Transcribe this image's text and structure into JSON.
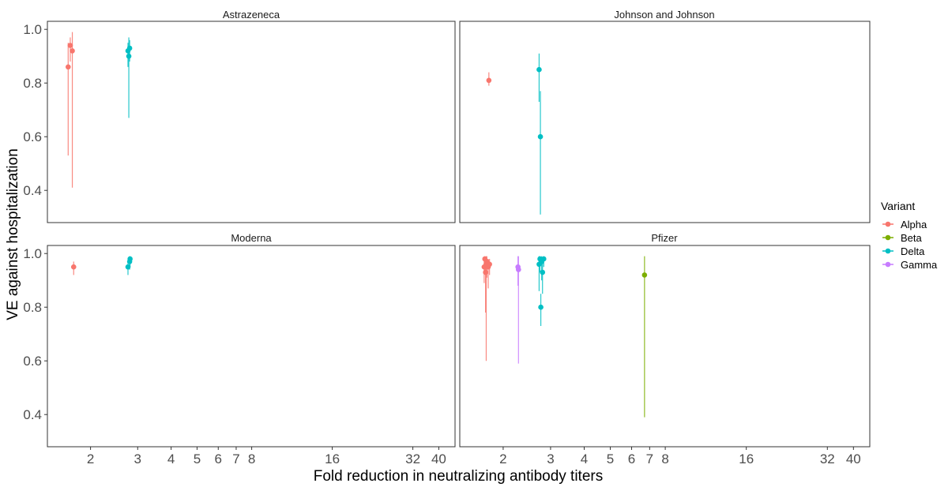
{
  "chart_data": {
    "type": "scatter",
    "xlabel": "Fold reduction in neutralizing antibody titers",
    "ylabel": "VE against hospitalization",
    "x_scale": "log",
    "xlim": [
      1.38,
      46
    ],
    "ylim": [
      0.28,
      1.03
    ],
    "x_ticks": [
      2,
      3,
      4,
      5,
      6,
      7,
      8,
      16,
      32,
      40
    ],
    "y_ticks": [
      0.4,
      0.6,
      0.8,
      1.0
    ],
    "y_tick_labels": [
      "0.4",
      "0.6",
      "0.8",
      "1.0"
    ],
    "legend": {
      "title": "Variant",
      "placement": "right",
      "entries": [
        {
          "name": "Alpha",
          "color": "#F8766D"
        },
        {
          "name": "Beta",
          "color": "#7CAE00"
        },
        {
          "name": "Delta",
          "color": "#00BFC4"
        },
        {
          "name": "Gamma",
          "color": "#C77CFF"
        }
      ]
    },
    "panels": [
      {
        "title": "Astrazeneca",
        "points": [
          {
            "variant": "Alpha",
            "x": 1.65,
            "y": 0.86,
            "lo": 0.53,
            "hi": 0.95
          },
          {
            "variant": "Alpha",
            "x": 1.68,
            "y": 0.94,
            "lo": 0.88,
            "hi": 0.97
          },
          {
            "variant": "Alpha",
            "x": 1.71,
            "y": 0.92,
            "lo": 0.41,
            "hi": 0.99
          },
          {
            "variant": "Delta",
            "x": 2.76,
            "y": 0.92,
            "lo": 0.86,
            "hi": 0.95
          },
          {
            "variant": "Delta",
            "x": 2.78,
            "y": 0.9,
            "lo": 0.67,
            "hi": 0.97
          },
          {
            "variant": "Delta",
            "x": 2.8,
            "y": 0.93,
            "lo": 0.88,
            "hi": 0.96
          }
        ]
      },
      {
        "title": "Johnson and Johnson",
        "points": [
          {
            "variant": "Alpha",
            "x": 1.77,
            "y": 0.81,
            "lo": 0.79,
            "hi": 0.84
          },
          {
            "variant": "Delta",
            "x": 2.72,
            "y": 0.85,
            "lo": 0.73,
            "hi": 0.91
          },
          {
            "variant": "Delta",
            "x": 2.75,
            "y": 0.6,
            "lo": 0.31,
            "hi": 0.77
          }
        ]
      },
      {
        "title": "Moderna",
        "points": [
          {
            "variant": "Alpha",
            "x": 1.73,
            "y": 0.95,
            "lo": 0.92,
            "hi": 0.97
          },
          {
            "variant": "Delta",
            "x": 2.76,
            "y": 0.95,
            "lo": 0.92,
            "hi": 0.97
          },
          {
            "variant": "Delta",
            "x": 2.8,
            "y": 0.97,
            "lo": 0.94,
            "hi": 0.99
          },
          {
            "variant": "Delta",
            "x": 2.81,
            "y": 0.98,
            "lo": 0.95,
            "hi": 0.99
          }
        ]
      },
      {
        "title": "Pfizer",
        "points": [
          {
            "variant": "Alpha",
            "x": 1.7,
            "y": 0.95,
            "lo": 0.89,
            "hi": 0.98
          },
          {
            "variant": "Alpha",
            "x": 1.71,
            "y": 0.98,
            "lo": 0.93,
            "hi": 0.99
          },
          {
            "variant": "Alpha",
            "x": 1.72,
            "y": 0.93,
            "lo": 0.78,
            "hi": 0.98
          },
          {
            "variant": "Alpha",
            "x": 1.73,
            "y": 0.96,
            "lo": 0.6,
            "hi": 0.99
          },
          {
            "variant": "Alpha",
            "x": 1.74,
            "y": 0.97,
            "lo": 0.91,
            "hi": 0.99
          },
          {
            "variant": "Alpha",
            "x": 1.76,
            "y": 0.95,
            "lo": 0.87,
            "hi": 0.98
          },
          {
            "variant": "Alpha",
            "x": 1.78,
            "y": 0.96,
            "lo": 0.92,
            "hi": 0.98
          },
          {
            "variant": "Gamma",
            "x": 2.27,
            "y": 0.95,
            "lo": 0.88,
            "hi": 0.99
          },
          {
            "variant": "Gamma",
            "x": 2.28,
            "y": 0.94,
            "lo": 0.59,
            "hi": 0.99
          },
          {
            "variant": "Delta",
            "x": 2.72,
            "y": 0.96,
            "lo": 0.86,
            "hi": 0.99
          },
          {
            "variant": "Delta",
            "x": 2.74,
            "y": 0.98,
            "lo": 0.93,
            "hi": 0.99
          },
          {
            "variant": "Delta",
            "x": 2.76,
            "y": 0.8,
            "lo": 0.73,
            "hi": 0.85
          },
          {
            "variant": "Delta",
            "x": 2.78,
            "y": 0.97,
            "lo": 0.9,
            "hi": 0.99
          },
          {
            "variant": "Delta",
            "x": 2.8,
            "y": 0.93,
            "lo": 0.85,
            "hi": 0.97
          },
          {
            "variant": "Delta",
            "x": 2.83,
            "y": 0.98,
            "lo": 0.95,
            "hi": 0.99
          },
          {
            "variant": "Beta",
            "x": 6.7,
            "y": 0.92,
            "lo": 0.39,
            "hi": 0.99
          }
        ]
      }
    ]
  }
}
